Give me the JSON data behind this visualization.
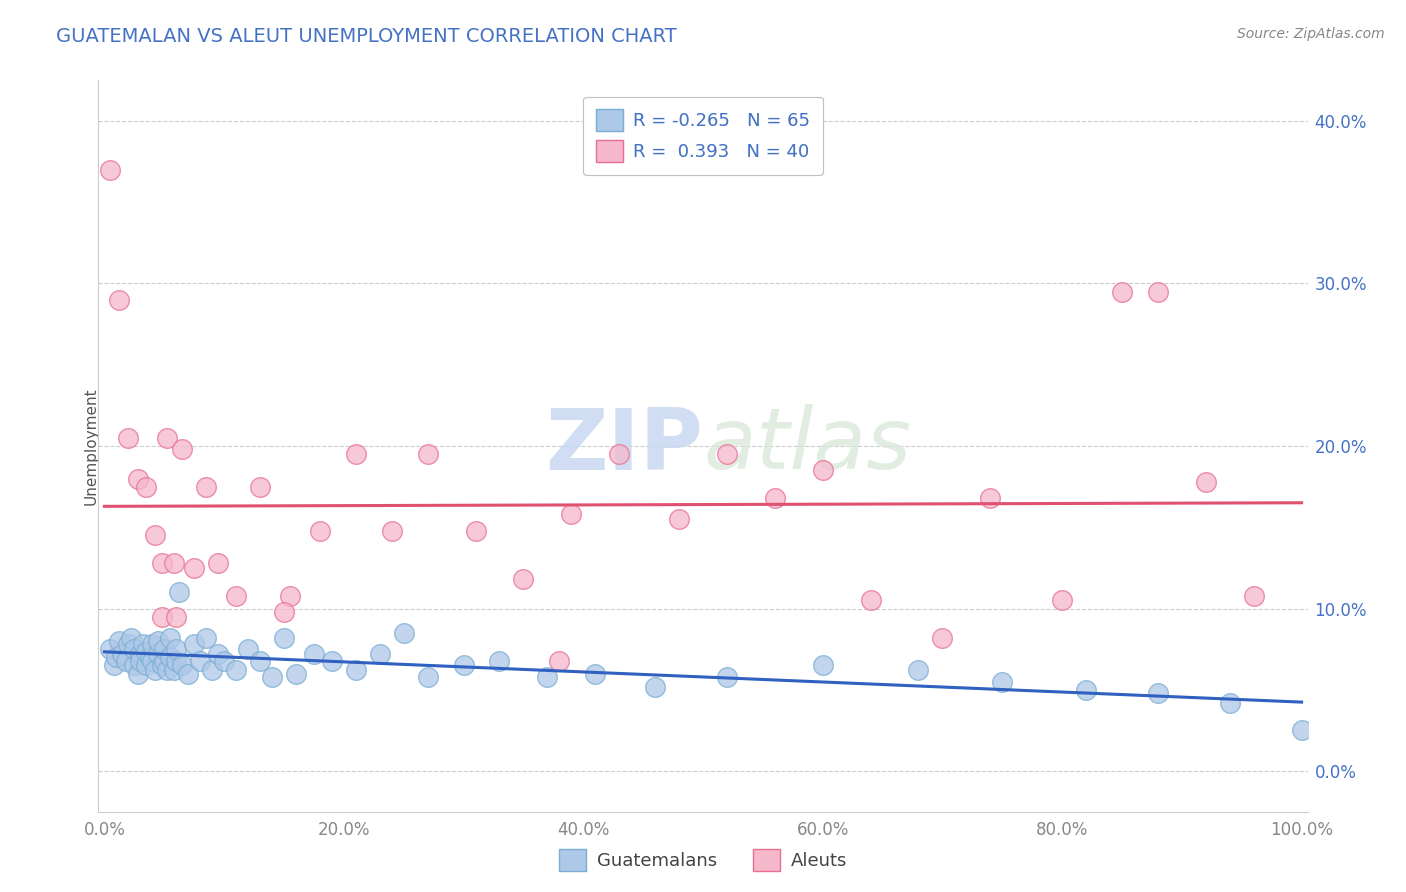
{
  "title": "GUATEMALAN VS ALEUT UNEMPLOYMENT CORRELATION CHART",
  "source": "Source: ZipAtlas.com",
  "ylabel": "Unemployment",
  "xlim": [
    -0.005,
    1.005
  ],
  "ylim": [
    -0.025,
    0.425
  ],
  "xticks": [
    0.0,
    0.2,
    0.4,
    0.6,
    0.8,
    1.0
  ],
  "yticks": [
    0.0,
    0.1,
    0.2,
    0.3,
    0.4
  ],
  "guatemalans_face_color": "#aec8e8",
  "guatemalans_edge_color": "#7aaed4",
  "aleuts_face_color": "#f5b8cc",
  "aleuts_edge_color": "#e87090",
  "guatemalans_line_color": "#3060c0",
  "aleuts_line_color": "#e05070",
  "title_color": "#4472c4",
  "axis_color": "#4472c4",
  "tick_label_color": "#888888",
  "source_color": "#888888",
  "R_guatemalans": -0.265,
  "N_guatemalans": 65,
  "R_aleuts": 0.393,
  "N_aleuts": 40,
  "guatemalans_x": [
    0.005,
    0.008,
    0.01,
    0.012,
    0.015,
    0.018,
    0.02,
    0.022,
    0.025,
    0.025,
    0.028,
    0.03,
    0.03,
    0.032,
    0.035,
    0.035,
    0.038,
    0.04,
    0.04,
    0.042,
    0.045,
    0.045,
    0.048,
    0.05,
    0.05,
    0.052,
    0.055,
    0.055,
    0.058,
    0.06,
    0.06,
    0.062,
    0.065,
    0.07,
    0.075,
    0.08,
    0.085,
    0.09,
    0.095,
    0.1,
    0.11,
    0.12,
    0.13,
    0.14,
    0.15,
    0.16,
    0.175,
    0.19,
    0.21,
    0.23,
    0.25,
    0.27,
    0.3,
    0.33,
    0.37,
    0.41,
    0.46,
    0.52,
    0.6,
    0.68,
    0.75,
    0.82,
    0.88,
    0.94,
    1.0
  ],
  "guatemalans_y": [
    0.075,
    0.065,
    0.07,
    0.08,
    0.072,
    0.068,
    0.078,
    0.082,
    0.065,
    0.075,
    0.06,
    0.072,
    0.068,
    0.078,
    0.065,
    0.073,
    0.07,
    0.068,
    0.078,
    0.062,
    0.072,
    0.08,
    0.065,
    0.068,
    0.075,
    0.062,
    0.07,
    0.082,
    0.062,
    0.068,
    0.075,
    0.11,
    0.065,
    0.06,
    0.078,
    0.068,
    0.082,
    0.062,
    0.072,
    0.068,
    0.062,
    0.075,
    0.068,
    0.058,
    0.082,
    0.06,
    0.072,
    0.068,
    0.062,
    0.072,
    0.085,
    0.058,
    0.065,
    0.068,
    0.058,
    0.06,
    0.052,
    0.058,
    0.065,
    0.062,
    0.055,
    0.05,
    0.048,
    0.042,
    0.025
  ],
  "aleuts_x": [
    0.005,
    0.012,
    0.02,
    0.028,
    0.035,
    0.042,
    0.048,
    0.052,
    0.058,
    0.065,
    0.075,
    0.085,
    0.095,
    0.11,
    0.13,
    0.155,
    0.18,
    0.21,
    0.24,
    0.27,
    0.31,
    0.35,
    0.39,
    0.43,
    0.48,
    0.52,
    0.56,
    0.6,
    0.64,
    0.7,
    0.74,
    0.8,
    0.85,
    0.88,
    0.92,
    0.96,
    0.048,
    0.06,
    0.15,
    0.38
  ],
  "aleuts_y": [
    0.37,
    0.29,
    0.205,
    0.18,
    0.175,
    0.145,
    0.128,
    0.205,
    0.128,
    0.198,
    0.125,
    0.175,
    0.128,
    0.108,
    0.175,
    0.108,
    0.148,
    0.195,
    0.148,
    0.195,
    0.148,
    0.118,
    0.158,
    0.195,
    0.155,
    0.195,
    0.168,
    0.185,
    0.105,
    0.082,
    0.168,
    0.105,
    0.295,
    0.295,
    0.178,
    0.108,
    0.095,
    0.095,
    0.098,
    0.068
  ],
  "background_color": "#ffffff",
  "grid_color": "#cccccc",
  "watermark_color": "#d8e4f0"
}
